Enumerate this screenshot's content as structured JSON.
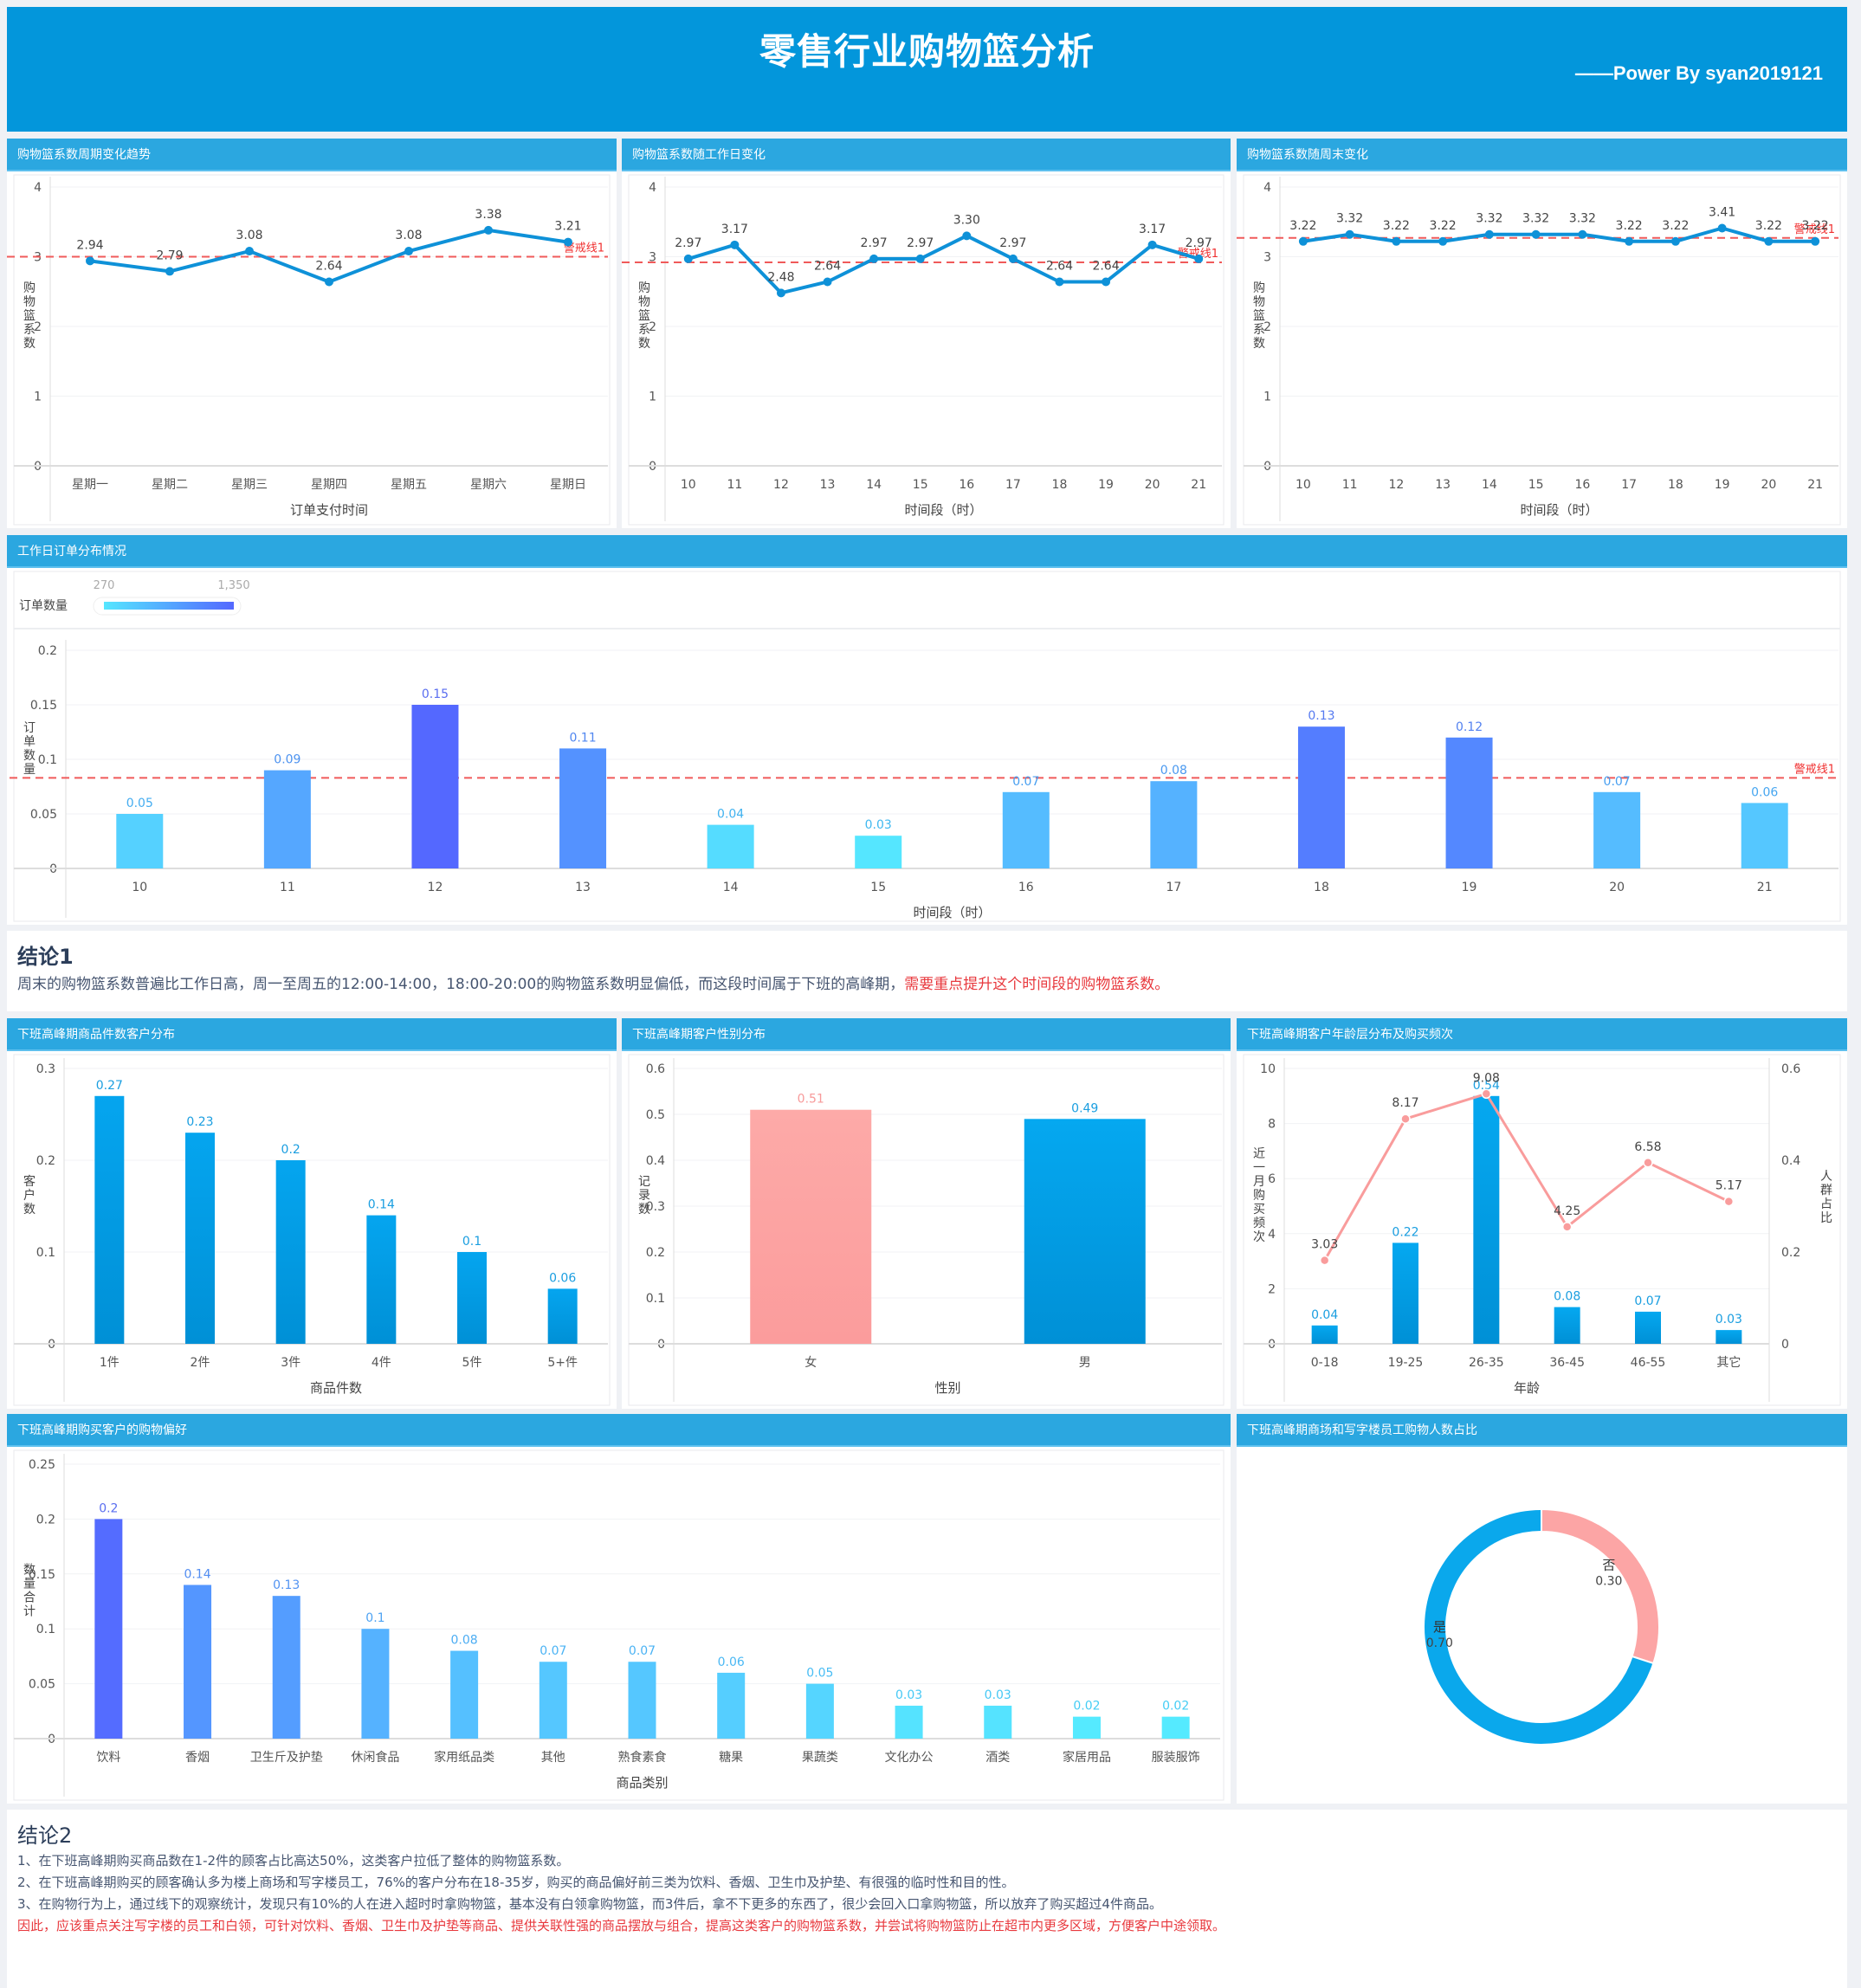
{
  "header": {
    "title": "零售行业购物篮分析",
    "subtitle": "——Power By syan2019121"
  },
  "colors": {
    "banner": "#0396db",
    "panel_header": "#2ba7e0",
    "line_blue": "#0e91d8",
    "warning_red": "#f04848",
    "pink": "#fb9c9c"
  },
  "panels": {
    "weekly_trend": "购物篮系数周期变化趋势",
    "workday": "购物篮系数随工作日变化",
    "weekend": "购物篮系数随周末变化",
    "order_dist": "工作日订单分布情况",
    "item_count": "下班高峰期商品件数客户分布",
    "gender": "下班高峰期客户性别分布",
    "age": "下班高峰期客户年龄层分布及购买频次",
    "preference": "下班高峰期购买客户的购物偏好",
    "office_ratio": "下班高峰期商场和写字楼员工购物人数占比"
  },
  "conclusion1": {
    "title": "结论1",
    "text": "周末的购物篮系数普遍比工作日高，周一至周五的12:00-14:00，18:00-20:00的购物篮系数明显偏低，而这段时间属于下班的高峰期，",
    "highlight": "需要重点提升这个时间段的购物篮系数。"
  },
  "conclusion2": {
    "title": "结论2",
    "lines": [
      "1、在下班高峰期购买商品数在1-2件的顾客占比高达50%，这类客户拉低了整体的购物篮系数。",
      "2、在下班高峰期购买的顾客确认多为楼上商场和写字楼员工，76%的客户分布在18-35岁，购买的商品偏好前三类为饮料、香烟、卫生巾及护垫、有很强的临时性和目的性。",
      "3、在购物行为上，通过线下的观察统计，发现只有10%的人在进入超时时拿购物篮，基本没有白领拿购物篮，而3件后，拿不下更多的东西了，很少会回入口拿购物篮，所以放弃了购买超过4件商品。"
    ],
    "highlight": "因此，应该重点关注写字楼的员工和白领，可针对饮料、香烟、卫生巾及护垫等商品、提供关联性强的商品摆放与组合，提高这类客户的购物篮系数，并尝试将购物篮防止在超市内更多区域，方便客户中途领取。"
  },
  "chart_data": [
    {
      "id": "weekly_trend",
      "type": "line",
      "categories": [
        "星期一",
        "星期二",
        "星期三",
        "星期四",
        "星期五",
        "星期六",
        "星期日"
      ],
      "values": [
        2.94,
        2.79,
        3.08,
        2.64,
        3.08,
        3.38,
        3.21
      ],
      "labels": [
        "2.94",
        "2.79",
        "3.08",
        "2.64",
        "3.08",
        "3.38",
        "3.21"
      ],
      "xlabel": "订单支付时间",
      "ylabel": "购物篮系数",
      "ylim": [
        0,
        4
      ],
      "yticks": [
        0,
        1,
        2,
        3,
        4
      ],
      "warning_line": {
        "value": 3.0,
        "label": "警戒线1"
      },
      "grid": true
    },
    {
      "id": "workday",
      "type": "line",
      "categories": [
        "10",
        "11",
        "12",
        "13",
        "14",
        "15",
        "16",
        "17",
        "18",
        "19",
        "20",
        "21"
      ],
      "values": [
        2.97,
        3.17,
        2.48,
        2.64,
        2.97,
        2.97,
        3.3,
        2.97,
        2.64,
        2.64,
        3.17,
        2.97
      ],
      "labels": [
        "2.97",
        "3.17",
        "2.48",
        "2.64",
        "2.97",
        "2.97",
        "3.30",
        "2.97",
        "2.64",
        "2.64",
        "3.17",
        "2.97"
      ],
      "xlabel": "时间段（时）",
      "ylabel": "购物篮系数",
      "ylim": [
        0,
        4
      ],
      "yticks": [
        0,
        1,
        2,
        3,
        4
      ],
      "warning_line": {
        "value": 2.92,
        "label": "警戒线1"
      },
      "grid": true
    },
    {
      "id": "weekend",
      "type": "line",
      "categories": [
        "10",
        "11",
        "12",
        "13",
        "14",
        "15",
        "16",
        "17",
        "18",
        "19",
        "20",
        "21"
      ],
      "values": [
        3.22,
        3.32,
        3.22,
        3.22,
        3.32,
        3.32,
        3.32,
        3.22,
        3.22,
        3.41,
        3.22,
        3.22
      ],
      "labels": [
        "3.22",
        "3.32",
        "3.22",
        "3.22",
        "3.32",
        "3.32",
        "3.32",
        "3.22",
        "3.22",
        "3.41",
        "3.22",
        "3.22"
      ],
      "xlabel": "时间段（时）",
      "ylabel": "购物篮系数",
      "ylim": [
        0,
        4
      ],
      "yticks": [
        0,
        1,
        2,
        3,
        4
      ],
      "warning_line": {
        "value": 3.27,
        "label": "警戒线1"
      },
      "grid": true
    },
    {
      "id": "order_dist",
      "type": "bar",
      "categories": [
        "10",
        "11",
        "12",
        "13",
        "14",
        "15",
        "16",
        "17",
        "18",
        "19",
        "20",
        "21"
      ],
      "values": [
        0.05,
        0.09,
        0.15,
        0.11,
        0.04,
        0.03,
        0.07,
        0.08,
        0.13,
        0.12,
        0.07,
        0.06
      ],
      "xlabel": "时间段（时）",
      "ylabel": "订单数量",
      "ylim": [
        0,
        0.2
      ],
      "yticks": [
        0,
        0.05,
        0.1,
        0.15,
        0.2
      ],
      "ytick_labels": [
        "0",
        "0.05",
        "0.1",
        "0.15",
        "0.2"
      ],
      "warning_line": {
        "value": 0.083,
        "label": "警戒线1"
      },
      "color_legend": {
        "title": "订单数量",
        "min": "270",
        "max": "1,350",
        "min_color": "#55e6ff",
        "max_color": "#5468ff"
      },
      "grid": true
    },
    {
      "id": "item_count",
      "type": "bar",
      "categories": [
        "1件",
        "2件",
        "3件",
        "4件",
        "5件",
        "5+件"
      ],
      "values": [
        0.27,
        0.23,
        0.2,
        0.14,
        0.1,
        0.06
      ],
      "labels": [
        "0.27",
        "0.23",
        "0.2",
        "0.14",
        "0.1",
        "0.06"
      ],
      "xlabel": "商品件数",
      "ylabel": "客户数",
      "ylim": [
        0,
        0.3
      ],
      "yticks": [
        0,
        0.1,
        0.2,
        0.3
      ],
      "ytick_labels": [
        "0",
        "0.1",
        "0.2",
        "0.3"
      ],
      "grid": true
    },
    {
      "id": "gender",
      "type": "bar",
      "categories": [
        "女",
        "男"
      ],
      "values": [
        0.51,
        0.49
      ],
      "labels": [
        "0.51",
        "0.49"
      ],
      "colors": [
        "#fca5a5",
        "#0aa0e6"
      ],
      "xlabel": "性别",
      "ylabel": "记录数",
      "ylim": [
        0,
        0.6
      ],
      "yticks": [
        0,
        0.1,
        0.2,
        0.3,
        0.4,
        0.5,
        0.6
      ],
      "ytick_labels": [
        "0",
        "0.1",
        "0.2",
        "0.3",
        "0.4",
        "0.5",
        "0.6"
      ],
      "grid": true
    },
    {
      "id": "age",
      "type": "bar+line",
      "categories": [
        "0-18",
        "19-25",
        "26-35",
        "36-45",
        "46-55",
        "其它"
      ],
      "series": [
        {
          "name": "人群占比",
          "type": "bar",
          "axis": "right",
          "values": [
            0.04,
            0.22,
            0.54,
            0.08,
            0.07,
            0.03
          ],
          "labels": [
            "0.04",
            "0.22",
            "0.54",
            "0.08",
            "0.07",
            "0.03"
          ]
        },
        {
          "name": "近一月购买频次",
          "type": "line",
          "axis": "left",
          "values": [
            3.03,
            8.17,
            9.08,
            4.25,
            6.58,
            5.17
          ],
          "labels": [
            "3.03",
            "8.17",
            "9.08",
            "4.25",
            "6.58",
            "5.17"
          ]
        }
      ],
      "xlabel": "年龄",
      "ylabel": "近一月购买频次",
      "ylabel_right": "人群占比",
      "ylim": [
        0,
        10
      ],
      "ylim_right": [
        0,
        0.6
      ],
      "yticks": [
        0,
        2,
        4,
        6,
        8,
        10
      ],
      "yticks_right": [
        0,
        0.2,
        0.4,
        0.6
      ],
      "ytick_labels_right": [
        "0",
        "0.2",
        "0.4",
        "0.6"
      ],
      "grid": true
    },
    {
      "id": "preference",
      "type": "bar",
      "categories": [
        "饮料",
        "香烟",
        "卫生斤及护垫",
        "休闲食品",
        "家用纸品类",
        "其他",
        "熟食素食",
        "糖果",
        "果蔬类",
        "文化办公",
        "酒类",
        "家居用品",
        "服装服饰"
      ],
      "values": [
        0.2,
        0.14,
        0.13,
        0.1,
        0.08,
        0.07,
        0.07,
        0.06,
        0.05,
        0.03,
        0.03,
        0.02,
        0.02
      ],
      "labels": [
        "0.2",
        "0.14",
        "0.13",
        "0.1",
        "0.08",
        "0.07",
        "0.07",
        "0.06",
        "0.05",
        "0.03",
        "0.03",
        "0.02",
        "0.02"
      ],
      "xlabel": "商品类别",
      "ylabel": "数量合计",
      "ylim": [
        0,
        0.25
      ],
      "yticks": [
        0,
        0.05,
        0.1,
        0.15,
        0.2,
        0.25
      ],
      "ytick_labels": [
        "0",
        "0.05",
        "0.1",
        "0.15",
        "0.2",
        "0.25"
      ],
      "grid": true
    },
    {
      "id": "office_ratio",
      "type": "pie",
      "donut": true,
      "slices": [
        {
          "label": "否",
          "value": 0.3,
          "text": "0.30",
          "color": "#fca5a5"
        },
        {
          "label": "是",
          "value": 0.7,
          "text": "0.70",
          "color": "#0aa8ec"
        }
      ]
    }
  ]
}
